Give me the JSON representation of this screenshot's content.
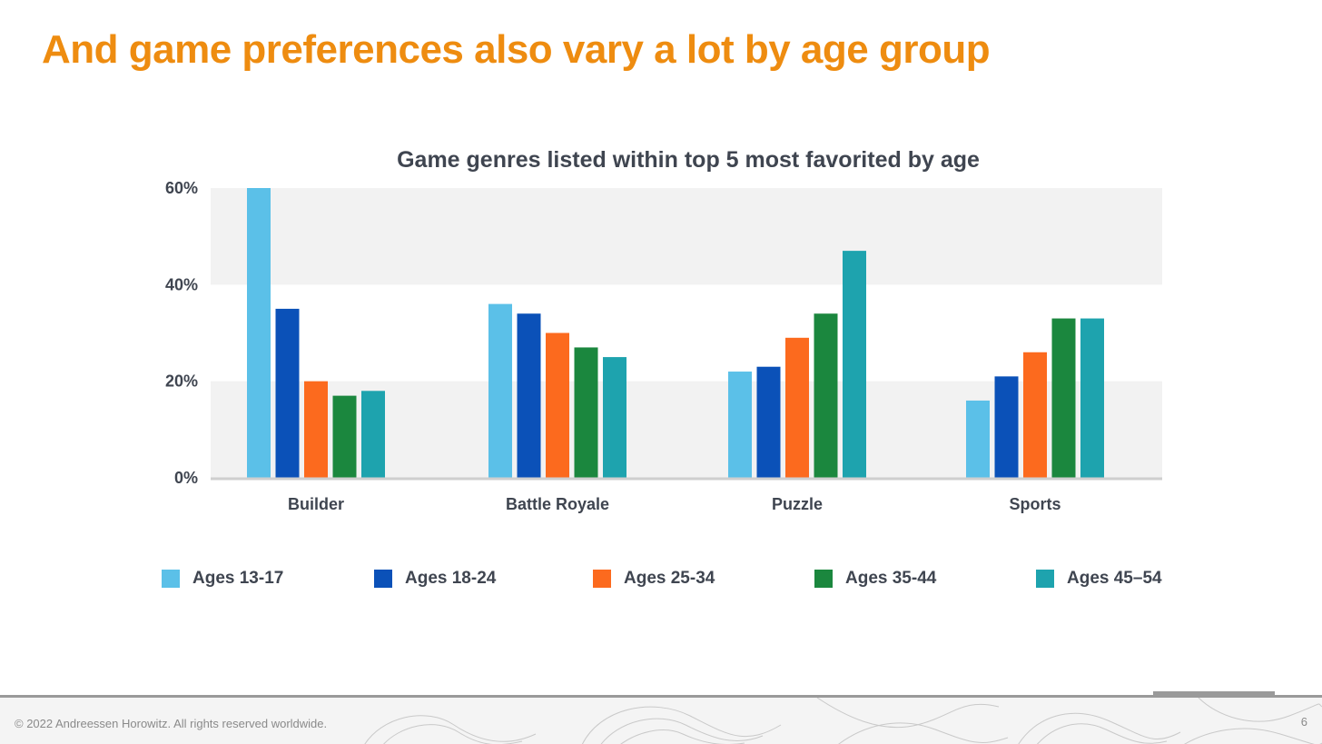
{
  "slide": {
    "title": "And game preferences also vary a lot by age group"
  },
  "chart_data": {
    "type": "bar",
    "title": "Game genres listed within top 5 most favorited by age",
    "categories": [
      "Builder",
      "Battle Royale",
      "Puzzle",
      "Sports"
    ],
    "series": [
      {
        "name": "Ages 13-17",
        "color": "#5bc0e8",
        "values": [
          60,
          36,
          22,
          16
        ]
      },
      {
        "name": "Ages 18-24",
        "color": "#0b51b8",
        "values": [
          35,
          34,
          23,
          21
        ]
      },
      {
        "name": "Ages 25-34",
        "color": "#fc6a1e",
        "values": [
          20,
          30,
          29,
          26
        ]
      },
      {
        "name": "Ages 35-44",
        "color": "#1b873e",
        "values": [
          17,
          27,
          34,
          33
        ]
      },
      {
        "name": "Ages 45–54",
        "color": "#1ea3ae",
        "values": [
          18,
          25,
          47,
          33
        ]
      }
    ],
    "ylim": [
      0,
      60
    ],
    "yticks": [
      "0%",
      "20%",
      "40%",
      "60%"
    ],
    "ytick_values": [
      0,
      20,
      40,
      60
    ],
    "xlabel": "",
    "ylabel": "",
    "grid": "alternating bands",
    "legend": "bottom"
  },
  "footer": {
    "copyright": "© 2022 Andreessen Horowitz. All rights reserved worldwide.",
    "page_number": "6"
  }
}
